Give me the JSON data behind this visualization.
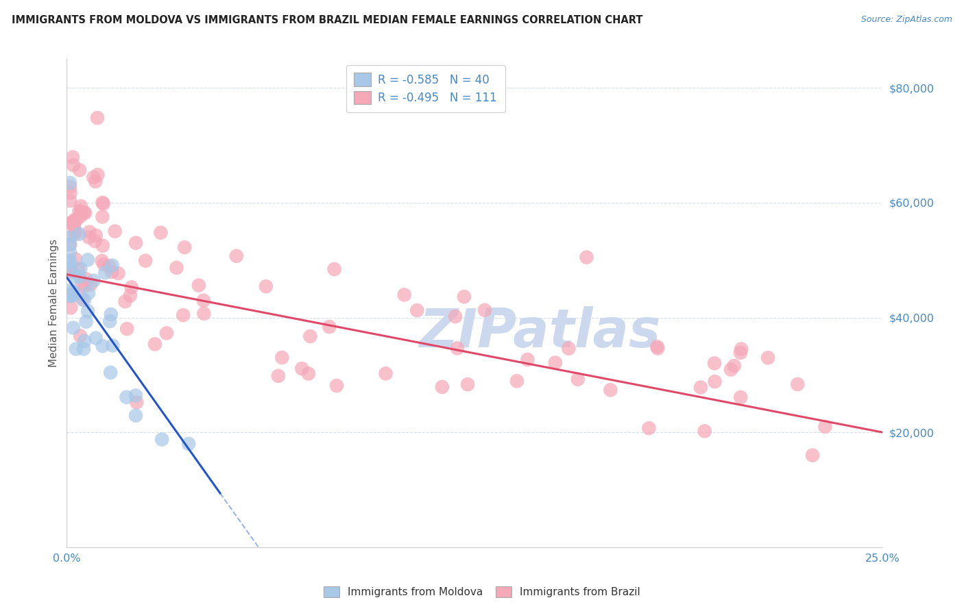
{
  "title": "IMMIGRANTS FROM MOLDOVA VS IMMIGRANTS FROM BRAZIL MEDIAN FEMALE EARNINGS CORRELATION CHART",
  "source": "Source: ZipAtlas.com",
  "ylabel": "Median Female Earnings",
  "xlim": [
    0.0,
    0.25
  ],
  "ylim": [
    0,
    85000
  ],
  "moldova_color": "#a8c8e8",
  "brazil_color": "#f4a8b8",
  "moldova_line_color": "#2255cc",
  "brazil_line_color": "#e04868",
  "legend_moldova_label": "R = -0.585   N = 40",
  "legend_brazil_label": "R = -0.495   N = 111",
  "background_color": "#ffffff",
  "grid_color": "#d4dce8",
  "watermark_text": "ZIPatlas",
  "watermark_color": "#ccd8ee",
  "tick_label_color": "#4488cc",
  "moldova_line_intercept": 47000,
  "moldova_line_slope": -800000,
  "moldova_line_x_end_solid": 0.047,
  "moldova_line_x_end_dash": 0.25,
  "brazil_line_intercept": 47500,
  "brazil_line_slope": -110000
}
